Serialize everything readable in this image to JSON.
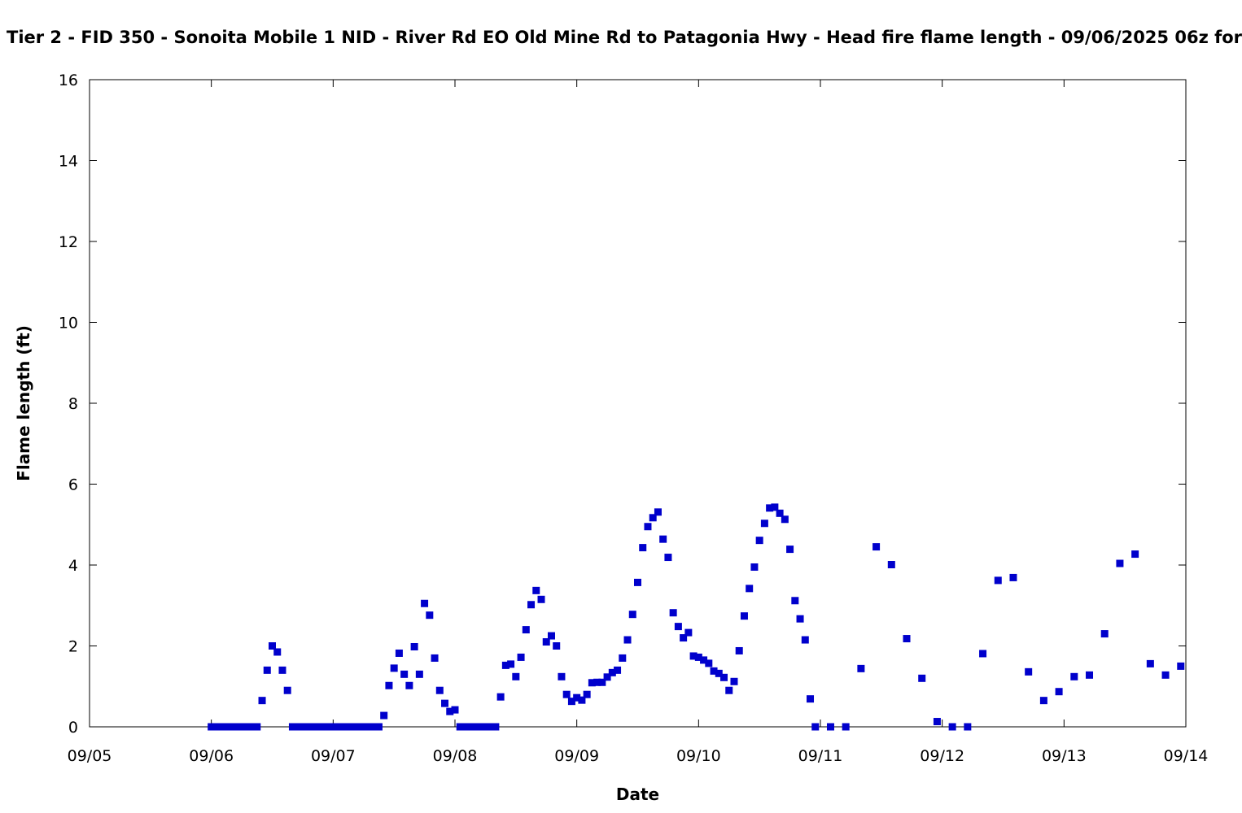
{
  "chart_data": {
    "type": "scatter",
    "title": "Tier 2 - FID 350 - Sonoita Mobile 1 NID - River Rd EO Old Mine Rd to Patagonia Hwy - Head fire flame length - 09/06/2025 06z for",
    "xlabel": "Date",
    "ylabel": "Flame length (ft)",
    "x_ticks": [
      "09/05",
      "09/06",
      "09/07",
      "09/08",
      "09/09",
      "09/10",
      "09/11",
      "09/12",
      "09/13",
      "09/14"
    ],
    "y_ticks": [
      "0",
      "2",
      "4",
      "6",
      "8",
      "10",
      "12",
      "14",
      "16"
    ],
    "xlim": [
      "2025-09-05T00:00",
      "2025-09-14T00:00"
    ],
    "ylim": [
      0,
      16
    ],
    "grid": false,
    "legend": "none",
    "series": [
      {
        "color": "#0000cc",
        "marker": "square",
        "points": [
          {
            "x": "2025-09-06T00:00",
            "y": 0
          },
          {
            "x": "2025-09-06T01:00",
            "y": 0
          },
          {
            "x": "2025-09-06T02:00",
            "y": 0
          },
          {
            "x": "2025-09-06T03:00",
            "y": 0
          },
          {
            "x": "2025-09-06T04:00",
            "y": 0
          },
          {
            "x": "2025-09-06T05:00",
            "y": 0
          },
          {
            "x": "2025-09-06T06:00",
            "y": 0
          },
          {
            "x": "2025-09-06T07:00",
            "y": 0
          },
          {
            "x": "2025-09-06T08:00",
            "y": 0
          },
          {
            "x": "2025-09-06T09:00",
            "y": 0
          },
          {
            "x": "2025-09-06T10:00",
            "y": 0.65
          },
          {
            "x": "2025-09-06T11:00",
            "y": 1.4
          },
          {
            "x": "2025-09-06T12:00",
            "y": 2.0
          },
          {
            "x": "2025-09-06T13:00",
            "y": 1.85
          },
          {
            "x": "2025-09-06T14:00",
            "y": 1.4
          },
          {
            "x": "2025-09-06T15:00",
            "y": 0.9
          },
          {
            "x": "2025-09-06T16:00",
            "y": 0
          },
          {
            "x": "2025-09-06T17:00",
            "y": 0
          },
          {
            "x": "2025-09-06T18:00",
            "y": 0
          },
          {
            "x": "2025-09-06T19:00",
            "y": 0
          },
          {
            "x": "2025-09-06T20:00",
            "y": 0
          },
          {
            "x": "2025-09-06T21:00",
            "y": 0
          },
          {
            "x": "2025-09-06T22:00",
            "y": 0
          },
          {
            "x": "2025-09-06T23:00",
            "y": 0
          },
          {
            "x": "2025-09-07T00:00",
            "y": 0
          },
          {
            "x": "2025-09-07T01:00",
            "y": 0
          },
          {
            "x": "2025-09-07T02:00",
            "y": 0
          },
          {
            "x": "2025-09-07T03:00",
            "y": 0
          },
          {
            "x": "2025-09-07T04:00",
            "y": 0
          },
          {
            "x": "2025-09-07T05:00",
            "y": 0
          },
          {
            "x": "2025-09-07T06:00",
            "y": 0
          },
          {
            "x": "2025-09-07T07:00",
            "y": 0
          },
          {
            "x": "2025-09-07T08:00",
            "y": 0
          },
          {
            "x": "2025-09-07T09:00",
            "y": 0
          },
          {
            "x": "2025-09-07T10:00",
            "y": 0.28
          },
          {
            "x": "2025-09-07T11:00",
            "y": 1.02
          },
          {
            "x": "2025-09-07T12:00",
            "y": 1.45
          },
          {
            "x": "2025-09-07T13:00",
            "y": 1.82
          },
          {
            "x": "2025-09-07T14:00",
            "y": 1.3
          },
          {
            "x": "2025-09-07T15:00",
            "y": 1.02
          },
          {
            "x": "2025-09-07T16:00",
            "y": 1.98
          },
          {
            "x": "2025-09-07T17:00",
            "y": 1.3
          },
          {
            "x": "2025-09-07T18:00",
            "y": 3.05
          },
          {
            "x": "2025-09-07T19:00",
            "y": 2.76
          },
          {
            "x": "2025-09-07T20:00",
            "y": 1.7
          },
          {
            "x": "2025-09-07T21:00",
            "y": 0.9
          },
          {
            "x": "2025-09-07T22:00",
            "y": 0.58
          },
          {
            "x": "2025-09-07T23:00",
            "y": 0.38
          },
          {
            "x": "2025-09-08T00:00",
            "y": 0.42
          },
          {
            "x": "2025-09-08T01:00",
            "y": 0
          },
          {
            "x": "2025-09-08T02:00",
            "y": 0
          },
          {
            "x": "2025-09-08T03:00",
            "y": 0
          },
          {
            "x": "2025-09-08T04:00",
            "y": 0
          },
          {
            "x": "2025-09-08T05:00",
            "y": 0
          },
          {
            "x": "2025-09-08T06:00",
            "y": 0
          },
          {
            "x": "2025-09-08T07:00",
            "y": 0
          },
          {
            "x": "2025-09-08T08:00",
            "y": 0
          },
          {
            "x": "2025-09-08T09:00",
            "y": 0.74
          },
          {
            "x": "2025-09-08T10:00",
            "y": 1.52
          },
          {
            "x": "2025-09-08T11:00",
            "y": 1.55
          },
          {
            "x": "2025-09-08T12:00",
            "y": 1.24
          },
          {
            "x": "2025-09-08T13:00",
            "y": 1.72
          },
          {
            "x": "2025-09-08T14:00",
            "y": 2.4
          },
          {
            "x": "2025-09-08T15:00",
            "y": 3.02
          },
          {
            "x": "2025-09-08T16:00",
            "y": 3.37
          },
          {
            "x": "2025-09-08T17:00",
            "y": 3.15
          },
          {
            "x": "2025-09-08T18:00",
            "y": 2.1
          },
          {
            "x": "2025-09-08T19:00",
            "y": 2.25
          },
          {
            "x": "2025-09-08T20:00",
            "y": 2.0
          },
          {
            "x": "2025-09-08T21:00",
            "y": 1.24
          },
          {
            "x": "2025-09-08T22:00",
            "y": 0.8
          },
          {
            "x": "2025-09-08T23:00",
            "y": 0.63
          },
          {
            "x": "2025-09-09T00:00",
            "y": 0.72
          },
          {
            "x": "2025-09-09T01:00",
            "y": 0.66
          },
          {
            "x": "2025-09-09T02:00",
            "y": 0.8
          },
          {
            "x": "2025-09-09T03:00",
            "y": 1.09
          },
          {
            "x": "2025-09-09T04:00",
            "y": 1.1
          },
          {
            "x": "2025-09-09T05:00",
            "y": 1.1
          },
          {
            "x": "2025-09-09T06:00",
            "y": 1.23
          },
          {
            "x": "2025-09-09T07:00",
            "y": 1.34
          },
          {
            "x": "2025-09-09T08:00",
            "y": 1.4
          },
          {
            "x": "2025-09-09T09:00",
            "y": 1.7
          },
          {
            "x": "2025-09-09T10:00",
            "y": 2.15
          },
          {
            "x": "2025-09-09T11:00",
            "y": 2.78
          },
          {
            "x": "2025-09-09T12:00",
            "y": 3.57
          },
          {
            "x": "2025-09-09T13:00",
            "y": 4.43
          },
          {
            "x": "2025-09-09T14:00",
            "y": 4.95
          },
          {
            "x": "2025-09-09T15:00",
            "y": 5.17
          },
          {
            "x": "2025-09-09T16:00",
            "y": 5.31
          },
          {
            "x": "2025-09-09T17:00",
            "y": 4.64
          },
          {
            "x": "2025-09-09T18:00",
            "y": 4.19
          },
          {
            "x": "2025-09-09T19:00",
            "y": 2.82
          },
          {
            "x": "2025-09-09T20:00",
            "y": 2.48
          },
          {
            "x": "2025-09-09T21:00",
            "y": 2.2
          },
          {
            "x": "2025-09-09T22:00",
            "y": 2.33
          },
          {
            "x": "2025-09-09T23:00",
            "y": 1.75
          },
          {
            "x": "2025-09-10T00:00",
            "y": 1.72
          },
          {
            "x": "2025-09-10T01:00",
            "y": 1.65
          },
          {
            "x": "2025-09-10T02:00",
            "y": 1.57
          },
          {
            "x": "2025-09-10T03:00",
            "y": 1.38
          },
          {
            "x": "2025-09-10T04:00",
            "y": 1.32
          },
          {
            "x": "2025-09-10T05:00",
            "y": 1.22
          },
          {
            "x": "2025-09-10T06:00",
            "y": 0.9
          },
          {
            "x": "2025-09-10T07:00",
            "y": 1.12
          },
          {
            "x": "2025-09-10T08:00",
            "y": 1.88
          },
          {
            "x": "2025-09-10T09:00",
            "y": 2.74
          },
          {
            "x": "2025-09-10T10:00",
            "y": 3.42
          },
          {
            "x": "2025-09-10T11:00",
            "y": 3.95
          },
          {
            "x": "2025-09-10T12:00",
            "y": 4.61
          },
          {
            "x": "2025-09-10T13:00",
            "y": 5.03
          },
          {
            "x": "2025-09-10T14:00",
            "y": 5.41
          },
          {
            "x": "2025-09-10T15:00",
            "y": 5.43
          },
          {
            "x": "2025-09-10T16:00",
            "y": 5.28
          },
          {
            "x": "2025-09-10T17:00",
            "y": 5.13
          },
          {
            "x": "2025-09-10T18:00",
            "y": 4.39
          },
          {
            "x": "2025-09-10T19:00",
            "y": 3.12
          },
          {
            "x": "2025-09-10T20:00",
            "y": 2.67
          },
          {
            "x": "2025-09-10T21:00",
            "y": 2.15
          },
          {
            "x": "2025-09-10T22:00",
            "y": 0.69
          },
          {
            "x": "2025-09-10T23:00",
            "y": 0
          },
          {
            "x": "2025-09-11T02:00",
            "y": 0
          },
          {
            "x": "2025-09-11T05:00",
            "y": 0
          },
          {
            "x": "2025-09-11T08:00",
            "y": 1.44
          },
          {
            "x": "2025-09-11T11:00",
            "y": 4.45
          },
          {
            "x": "2025-09-11T14:00",
            "y": 4.01
          },
          {
            "x": "2025-09-11T17:00",
            "y": 2.18
          },
          {
            "x": "2025-09-11T20:00",
            "y": 1.2
          },
          {
            "x": "2025-09-11T23:00",
            "y": 0.13
          },
          {
            "x": "2025-09-12T02:00",
            "y": 0
          },
          {
            "x": "2025-09-12T05:00",
            "y": 0
          },
          {
            "x": "2025-09-12T08:00",
            "y": 1.81
          },
          {
            "x": "2025-09-12T11:00",
            "y": 3.62
          },
          {
            "x": "2025-09-12T14:00",
            "y": 3.69
          },
          {
            "x": "2025-09-12T17:00",
            "y": 1.36
          },
          {
            "x": "2025-09-12T20:00",
            "y": 0.65
          },
          {
            "x": "2025-09-12T23:00",
            "y": 0.87
          },
          {
            "x": "2025-09-13T02:00",
            "y": 1.24
          },
          {
            "x": "2025-09-13T05:00",
            "y": 1.28
          },
          {
            "x": "2025-09-13T08:00",
            "y": 2.3
          },
          {
            "x": "2025-09-13T11:00",
            "y": 4.04
          },
          {
            "x": "2025-09-13T14:00",
            "y": 4.27
          },
          {
            "x": "2025-09-13T17:00",
            "y": 1.56
          },
          {
            "x": "2025-09-13T20:00",
            "y": 1.28
          },
          {
            "x": "2025-09-13T23:00",
            "y": 1.5
          }
        ]
      }
    ]
  }
}
